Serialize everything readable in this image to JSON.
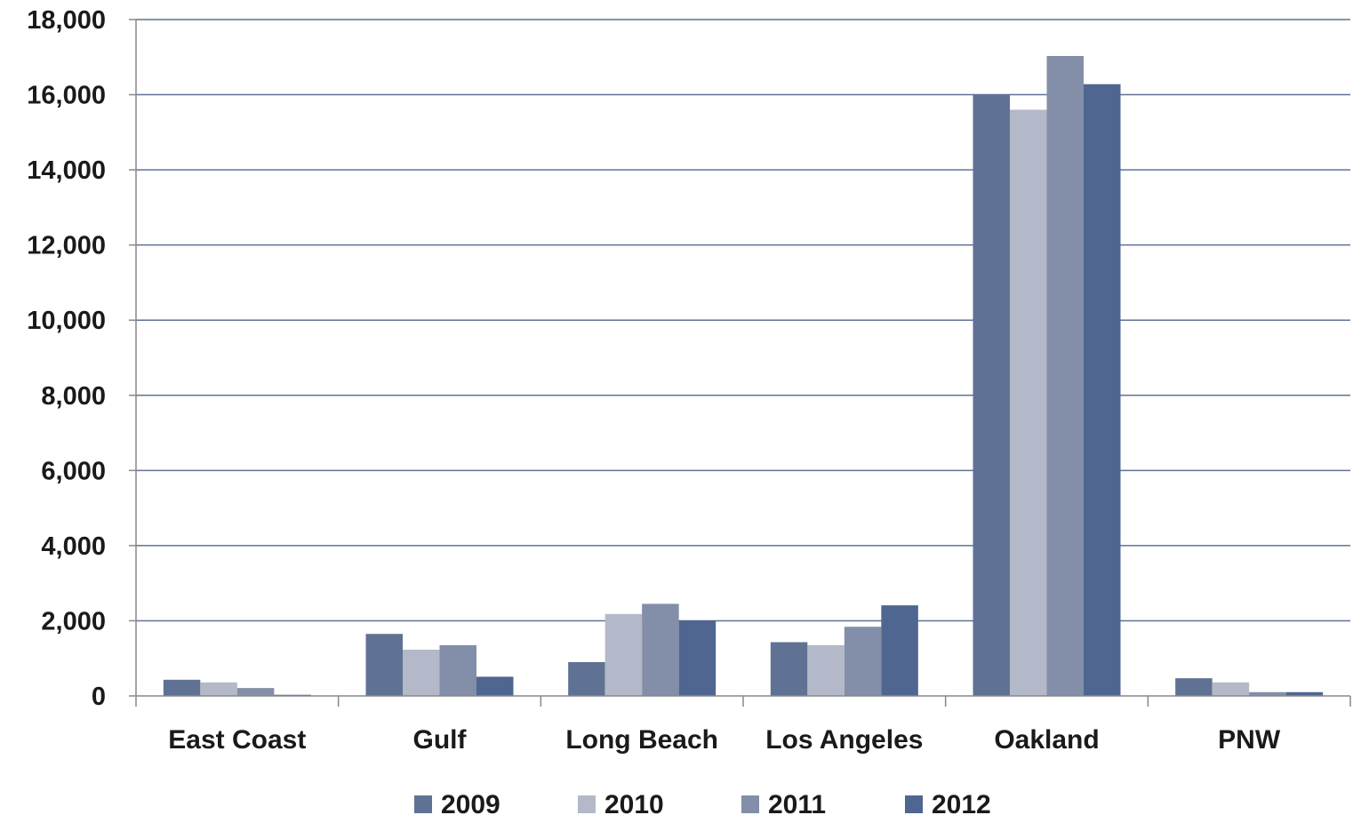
{
  "chart_data": {
    "type": "bar",
    "title": "",
    "xlabel": "",
    "ylabel": "",
    "ylim": [
      0,
      18000
    ],
    "yticks": [
      0,
      2000,
      4000,
      6000,
      8000,
      10000,
      12000,
      14000,
      16000,
      18000
    ],
    "ytick_labels": [
      "0",
      "2,000",
      "4,000",
      "6,000",
      "8,000",
      "10,000",
      "12,000",
      "14,000",
      "16,000",
      "18,000"
    ],
    "grid": true,
    "legend_position": "bottom",
    "categories": [
      "East Coast",
      "Gulf",
      "Long Beach",
      "Los Angeles",
      "Oakland",
      "PNW"
    ],
    "series": [
      {
        "name": "2009",
        "color": "#5f7294",
        "values": [
          430,
          1650,
          900,
          1430,
          16000,
          470
        ]
      },
      {
        "name": "2010",
        "color": "#b3b9c8",
        "values": [
          360,
          1230,
          2180,
          1350,
          15600,
          360
        ]
      },
      {
        "name": "2011",
        "color": "#838ea8",
        "values": [
          210,
          1350,
          2450,
          1840,
          17030,
          100
        ]
      },
      {
        "name": "2012",
        "color": "#4e6690",
        "values": [
          30,
          510,
          2000,
          2410,
          16280,
          100
        ]
      }
    ]
  }
}
